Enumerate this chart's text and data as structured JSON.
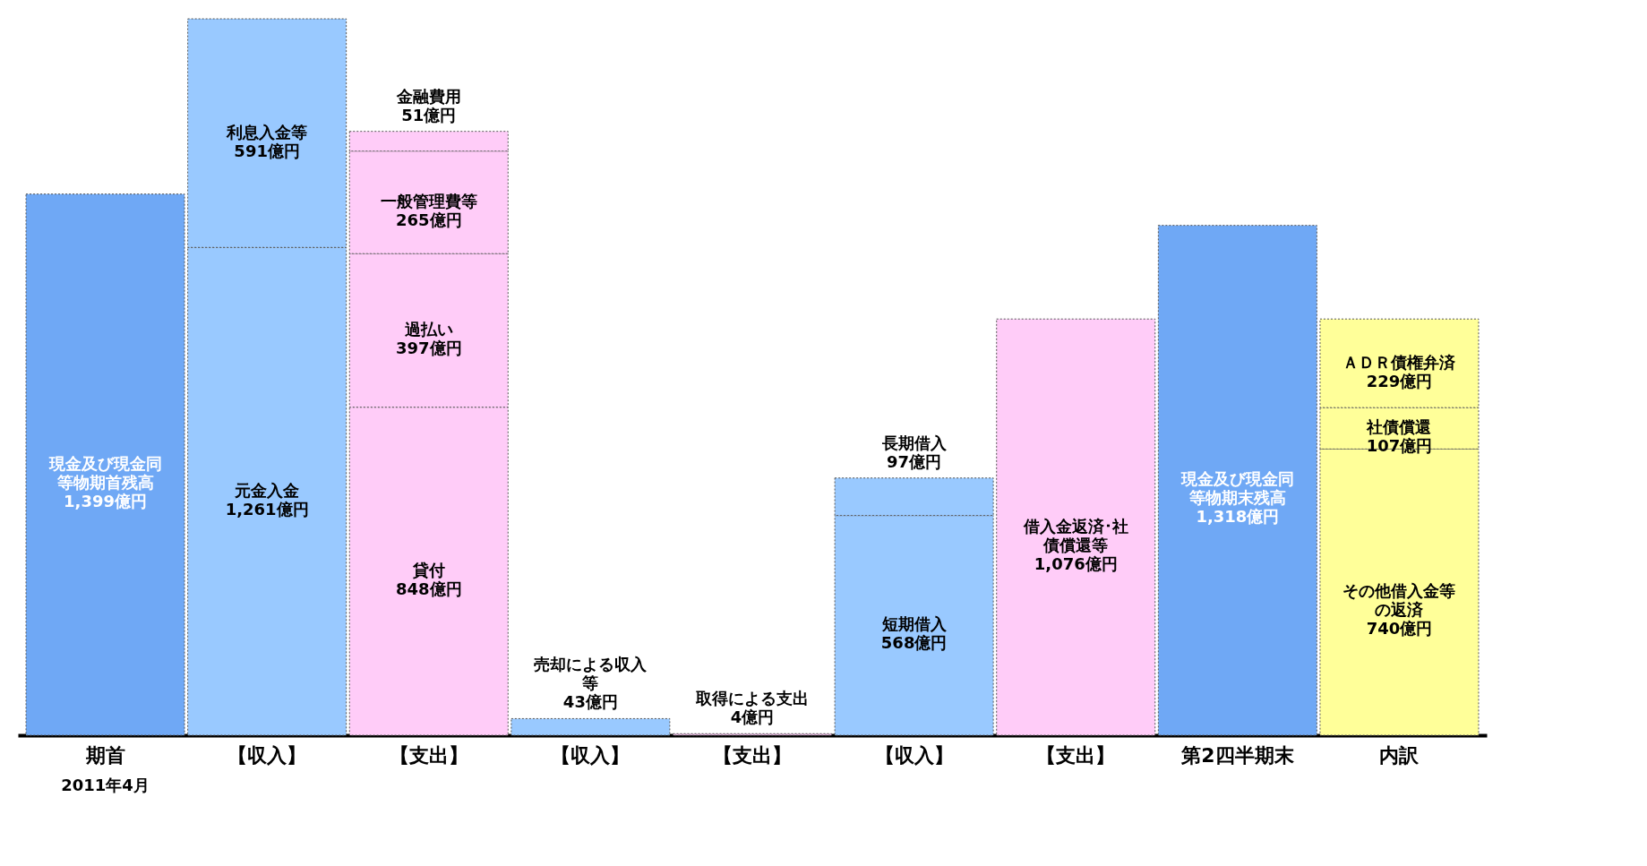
{
  "chart_data": {
    "type": "bar",
    "stacked": true,
    "grid": false,
    "categories": [
      "期首",
      "【収入】",
      "【支出】",
      "【収入】",
      "【支出】",
      "【収入】",
      "【支出】",
      "第2四半期末",
      "内訳"
    ],
    "series": [
      {
        "values": [
          1399,
          1261,
          848,
          43,
          4,
          568,
          1076,
          1318,
          740
        ],
        "colors": [
          "#6fa8f5",
          "#99c9ff",
          "#ffccf8",
          "#99c9ff",
          "#ffccf8",
          "#99c9ff",
          "#ffccf8",
          "#6fa8f5",
          "#ffff99"
        ],
        "value_labels": [
          "現金及び現金同等物期首残高1,399億円",
          "元金入金1,261億円",
          "貸付848億円",
          "売却による収入等43億円",
          "取得による支出4億円",
          "短期借入568億円",
          "借入金返済･社債償還等1,076億円",
          "現金及び現金同等物期末残高1,318億円",
          "その他借入金等の返済740億円"
        ]
      },
      {
        "values": [
          null,
          591,
          397,
          null,
          null,
          97,
          null,
          null,
          107
        ],
        "colors": [
          null,
          "#99c9ff",
          "#ffccf8",
          null,
          null,
          "#99c9ff",
          null,
          null,
          "#ffff99"
        ],
        "value_labels": [
          null,
          "利息入金等591億円",
          "過払い397億円",
          null,
          null,
          "長期借入97億円",
          null,
          null,
          "社債償還107億円"
        ]
      },
      {
        "values": [
          null,
          null,
          265,
          null,
          null,
          null,
          null,
          null,
          229
        ],
        "colors": [
          null,
          null,
          "#ffccf8",
          null,
          null,
          null,
          null,
          null,
          "#ffff99"
        ],
        "value_labels": [
          null,
          null,
          "一般管理費等265億円",
          null,
          null,
          null,
          null,
          null,
          "ＡＤＲ債権弁済229億円"
        ]
      },
      {
        "values": [
          null,
          null,
          51,
          null,
          null,
          null,
          null,
          null,
          null
        ],
        "colors": [
          null,
          null,
          "#ffccf8",
          null,
          null,
          null,
          null,
          null,
          null
        ],
        "value_labels": [
          null,
          null,
          "金融費用51億円",
          null,
          null,
          null,
          null,
          null,
          null
        ]
      }
    ],
    "annotations": [
      "2011年4月"
    ]
  }
}
